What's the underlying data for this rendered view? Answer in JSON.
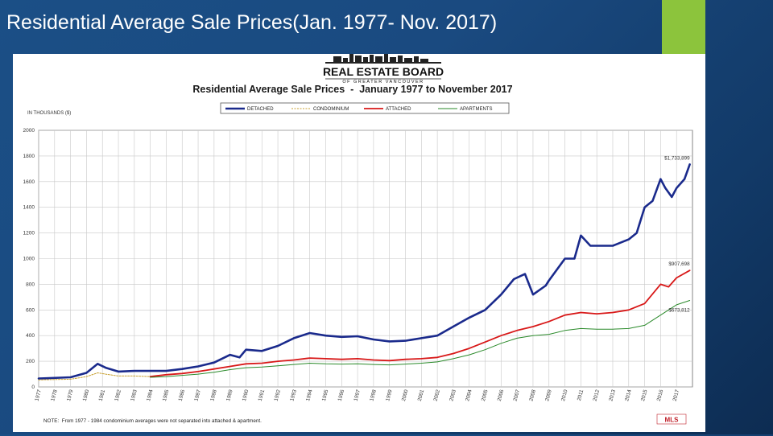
{
  "slide": {
    "title": "Residential Average Sale Prices(Jan. 1977- Nov. 2017)"
  },
  "logo": {
    "name": "REAL ESTATE BOARD",
    "subname": "OF GREATER VANCOUVER"
  },
  "chart_data": {
    "type": "line",
    "title": "Residential Average Sale Prices  -  January 1977 to November 2017",
    "ylabel": "IN THOUSANDS ($)",
    "xlabel": "",
    "ylim": [
      0,
      2000
    ],
    "yticks": [
      0,
      200,
      400,
      600,
      800,
      1000,
      1200,
      1400,
      1600,
      1800,
      2000
    ],
    "x_tick_labels": [
      "1977",
      "1978",
      "1979",
      "1980",
      "1981",
      "1982",
      "1983",
      "1984",
      "1985",
      "1986",
      "1987",
      "1988",
      "1989",
      "1990",
      "1991",
      "1992",
      "1993",
      "1994",
      "1995",
      "1996",
      "1997",
      "1998",
      "1999",
      "2000",
      "2001",
      "2002",
      "2003",
      "2004",
      "2005",
      "2006",
      "2007",
      "2008",
      "2009",
      "2010",
      "2011",
      "2012",
      "2013",
      "2014",
      "2015",
      "2016",
      "2017"
    ],
    "grid": true,
    "legend_position": "top",
    "series": [
      {
        "name": "DETACHED",
        "color": "#1a2a8c",
        "style": "solid",
        "x": [
          1977,
          1979,
          1980,
          1980.7,
          1981.2,
          1982,
          1983,
          1985,
          1986,
          1987,
          1988,
          1989,
          1989.6,
          1990,
          1991,
          1992,
          1993,
          1994,
          1995,
          1996,
          1997,
          1998,
          1999,
          2000,
          2001,
          2002,
          2003,
          2004,
          2005,
          2006,
          2006.8,
          2007.5,
          2008,
          2008.8,
          2009,
          2010,
          2010.6,
          2011,
          2011.6,
          2012,
          2013,
          2014,
          2014.5,
          2015,
          2015.5,
          2016,
          2016.3,
          2016.7,
          2017,
          2017.5,
          2017.83
        ],
        "values": [
          65,
          75,
          110,
          180,
          150,
          120,
          125,
          125,
          140,
          160,
          190,
          250,
          230,
          290,
          280,
          320,
          380,
          420,
          400,
          390,
          395,
          370,
          355,
          360,
          380,
          400,
          470,
          540,
          600,
          720,
          840,
          880,
          720,
          790,
          830,
          1000,
          1000,
          1180,
          1100,
          1100,
          1100,
          1150,
          1200,
          1400,
          1450,
          1620,
          1550,
          1480,
          1550,
          1620,
          1733.899
        ]
      },
      {
        "name": "CONDOMINIUM",
        "color": "#c8a030",
        "style": "dashed",
        "x": [
          1977,
          1979,
          1980,
          1980.7,
          1981.2,
          1982,
          1983,
          1984
        ],
        "values": [
          55,
          60,
          80,
          110,
          100,
          85,
          85,
          80
        ]
      },
      {
        "name": "ATTACHED",
        "color": "#d81818",
        "style": "solid",
        "x": [
          1984,
          1985,
          1986,
          1987,
          1988,
          1989,
          1990,
          1991,
          1992,
          1993,
          1994,
          1995,
          1996,
          1997,
          1998,
          1999,
          2000,
          2001,
          2002,
          2003,
          2004,
          2005,
          2006,
          2007,
          2008,
          2009,
          2010,
          2011,
          2012,
          2013,
          2014,
          2015,
          2016,
          2016.5,
          2017,
          2017.83
        ],
        "values": [
          80,
          95,
          105,
          120,
          140,
          160,
          180,
          185,
          200,
          210,
          225,
          220,
          215,
          220,
          210,
          205,
          215,
          220,
          230,
          260,
          300,
          350,
          400,
          440,
          470,
          510,
          560,
          580,
          570,
          580,
          600,
          650,
          800,
          780,
          850,
          907.698
        ]
      },
      {
        "name": "APARTMENTS",
        "color": "#2a8a2a",
        "style": "solid",
        "x": [
          1984,
          1985,
          1986,
          1987,
          1988,
          1989,
          1990,
          1991,
          1992,
          1993,
          1994,
          1995,
          1996,
          1997,
          1998,
          1999,
          2000,
          2001,
          2002,
          2003,
          2004,
          2005,
          2006,
          2007,
          2008,
          2009,
          2010,
          2011,
          2012,
          2013,
          2014,
          2015,
          2016,
          2016.5,
          2017,
          2017.83
        ],
        "values": [
          75,
          80,
          90,
          100,
          115,
          135,
          150,
          155,
          165,
          175,
          185,
          180,
          178,
          180,
          175,
          172,
          178,
          185,
          195,
          220,
          250,
          290,
          340,
          380,
          400,
          410,
          440,
          455,
          450,
          450,
          455,
          480,
          560,
          600,
          640,
          673.812
        ]
      }
    ],
    "annotations": [
      {
        "text": "$1,733,899",
        "x": 2017.83,
        "y": 1733.899,
        "anchor": "end-above"
      },
      {
        "text": "$907,698",
        "x": 2017.83,
        "y": 907.698,
        "anchor": "end-above"
      },
      {
        "text": "$673,812",
        "x": 2017.83,
        "y": 673.812,
        "anchor": "end-below"
      }
    ],
    "note": "NOTE:  From 1977 - 1984 condominium averages were not separated into attached & apartment.",
    "footer_logo": "MLS"
  }
}
